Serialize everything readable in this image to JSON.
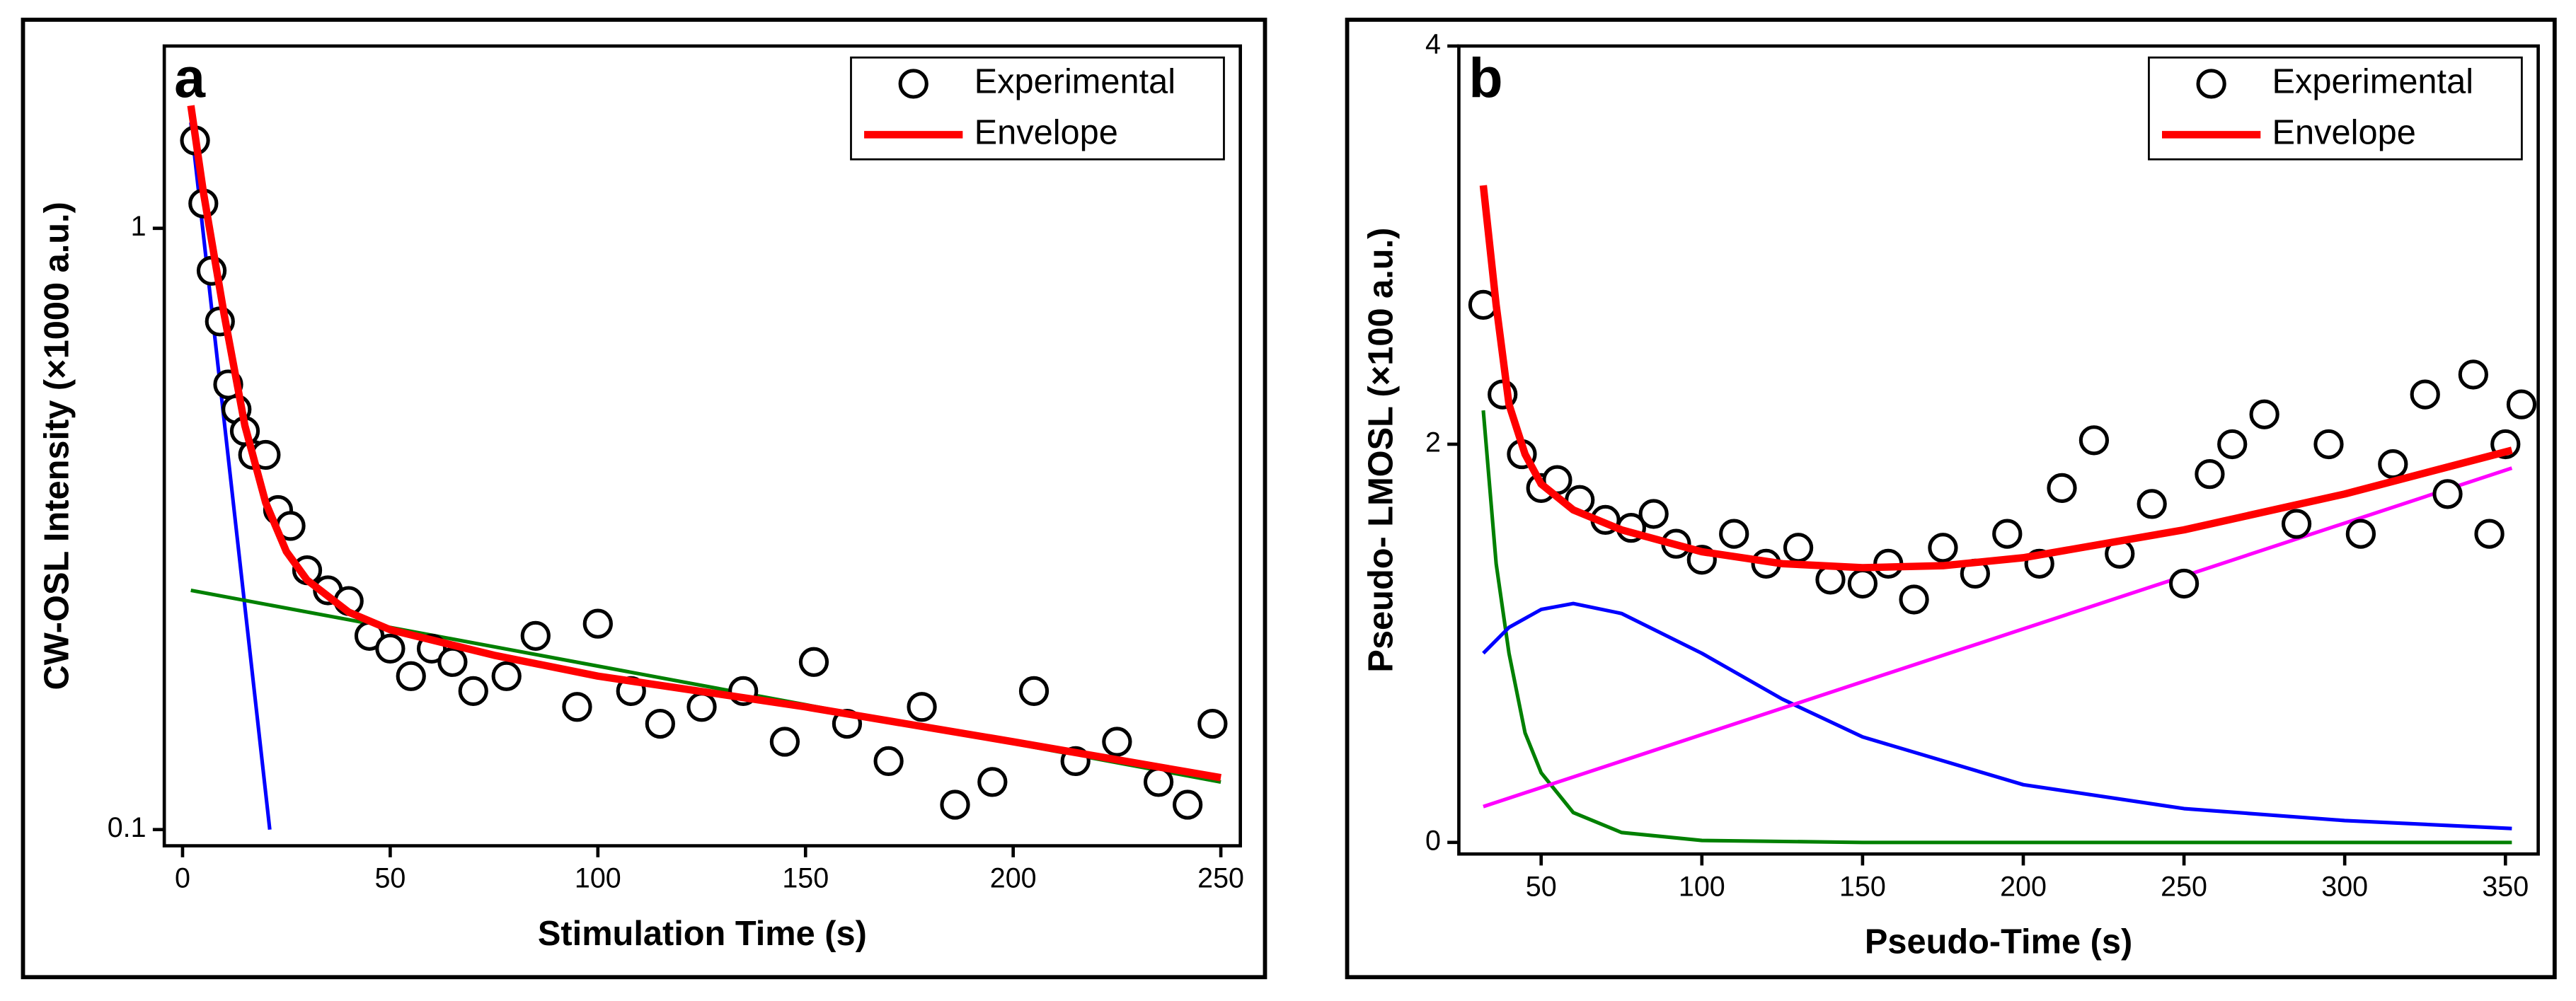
{
  "chart_data": [
    {
      "type": "scatter",
      "label": "a",
      "x_label": "Stimulation Time (s)",
      "y_label": "CW-OSL Intensity (×1000 a.u.)",
      "xlim": [
        -4.4,
        254.7
      ],
      "ylim": [
        0.094,
        2.01
      ],
      "ylog": true,
      "xticks": [
        0,
        50,
        100,
        150,
        200,
        250
      ],
      "yticks": [
        0.1,
        1
      ],
      "legend": "upper right",
      "series": [
        {
          "color": "#0000ff",
          "mode": "lines",
          "x": [
            2,
            21
          ],
          "values": [
            1.5,
            0.1
          ]
        },
        {
          "color": "#008000",
          "mode": "lines",
          "x": [
            2,
            250
          ],
          "values": [
            0.25,
            0.12
          ]
        },
        {
          "name": "Experimental",
          "color": "#000000",
          "mode": "markers",
          "x": [
            3,
            5,
            7,
            9,
            11,
            13,
            15,
            17,
            20,
            23,
            26,
            30,
            35,
            40,
            45,
            50,
            55,
            60,
            65,
            70,
            78,
            85,
            95,
            100,
            108,
            115,
            125,
            135,
            145,
            152,
            160,
            170,
            178,
            186,
            195,
            205,
            215,
            225,
            235,
            242,
            248
          ],
          "values": [
            1.4,
            1.1,
            0.85,
            0.7,
            0.55,
            0.5,
            0.46,
            0.42,
            0.42,
            0.34,
            0.32,
            0.27,
            0.25,
            0.24,
            0.21,
            0.2,
            0.18,
            0.2,
            0.19,
            0.17,
            0.18,
            0.21,
            0.16,
            0.22,
            0.17,
            0.15,
            0.16,
            0.17,
            0.14,
            0.19,
            0.15,
            0.13,
            0.16,
            0.11,
            0.12,
            0.17,
            0.13,
            0.14,
            0.12,
            0.11,
            0.15
          ]
        },
        {
          "name": "Envelope",
          "color": "#ff0000",
          "mode": "lines",
          "x": [
            2,
            5,
            10,
            15,
            20,
            25,
            30,
            40,
            50,
            75,
            100,
            150,
            200,
            250
          ],
          "values": [
            1.6,
            1.15,
            0.72,
            0.47,
            0.35,
            0.29,
            0.26,
            0.23,
            0.215,
            0.195,
            0.18,
            0.16,
            0.14,
            0.122
          ]
        }
      ]
    },
    {
      "type": "scatter",
      "label": "b",
      "x_label": "Pseudo-Time (s)",
      "y_label": "Pseudo- LMOSL (×100 a.u.)",
      "xlim": [
        24.4,
        360.2
      ],
      "ylim": [
        -0.058,
        4
      ],
      "ylog": false,
      "xticks": [
        50,
        100,
        150,
        200,
        250,
        300,
        350
      ],
      "yticks": [
        0,
        2,
        4
      ],
      "legend": "upper right",
      "series": [
        {
          "color": "#008000",
          "mode": "lines",
          "x": [
            32,
            36,
            40,
            45,
            50,
            60,
            75,
            100,
            150,
            200,
            352
          ],
          "values": [
            2.17,
            1.4,
            0.95,
            0.55,
            0.35,
            0.15,
            0.05,
            0.01,
            0.0,
            0.0,
            0.0
          ]
        },
        {
          "color": "#0000ff",
          "mode": "lines",
          "x": [
            32,
            40,
            50,
            60,
            75,
            100,
            125,
            150,
            200,
            250,
            300,
            352
          ],
          "values": [
            0.95,
            1.08,
            1.17,
            1.2,
            1.15,
            0.95,
            0.72,
            0.53,
            0.29,
            0.17,
            0.11,
            0.07
          ]
        },
        {
          "color": "#ff00ff",
          "mode": "lines",
          "x": [
            32,
            352
          ],
          "values": [
            0.18,
            1.88
          ]
        },
        {
          "name": "Experimental",
          "color": "#000000",
          "mode": "markers",
          "x": [
            32,
            38,
            44,
            50,
            55,
            62,
            70,
            78,
            85,
            92,
            100,
            110,
            120,
            130,
            140,
            150,
            158,
            166,
            175,
            185,
            195,
            205,
            212,
            222,
            230,
            240,
            250,
            258,
            265,
            275,
            285,
            295,
            305,
            315,
            325,
            332,
            340,
            345,
            350,
            355
          ],
          "values": [
            2.7,
            2.25,
            1.95,
            1.78,
            1.82,
            1.72,
            1.62,
            1.58,
            1.65,
            1.5,
            1.42,
            1.55,
            1.4,
            1.48,
            1.32,
            1.3,
            1.4,
            1.22,
            1.48,
            1.35,
            1.55,
            1.4,
            1.78,
            2.02,
            1.45,
            1.7,
            1.3,
            1.85,
            2.0,
            2.15,
            1.6,
            2.0,
            1.55,
            1.9,
            2.25,
            1.75,
            2.35,
            1.55,
            2.0,
            2.2
          ]
        },
        {
          "name": "Envelope",
          "color": "#ff0000",
          "mode": "lines",
          "x": [
            32,
            36,
            40,
            45,
            50,
            60,
            75,
            100,
            125,
            150,
            175,
            200,
            250,
            300,
            352
          ],
          "values": [
            3.3,
            2.7,
            2.2,
            1.95,
            1.8,
            1.67,
            1.57,
            1.46,
            1.4,
            1.38,
            1.39,
            1.43,
            1.57,
            1.75,
            1.97
          ]
        }
      ]
    }
  ]
}
